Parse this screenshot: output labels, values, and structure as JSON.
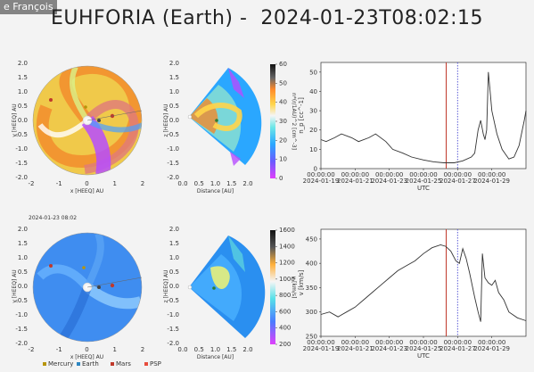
{
  "speaker": "e François",
  "title": "EUHFORIA (Earth) -  2024-01-23T08:02:15",
  "bottom_left_timestamp": "2024-01-23 08:02",
  "colors": {
    "accent_line": "#333333",
    "current_time_marker": "#c0392b",
    "dotted_marker": "#5b5bd6"
  },
  "chart_data": [
    {
      "type": "image",
      "panel": "top-left",
      "xlabel": "x [HEEQ] AU",
      "ylabel": "y [HEEQ] AU",
      "x_ticks": [
        "-2",
        "-1",
        "0",
        "1",
        "2"
      ],
      "y_ticks": [
        "2.0",
        "1.5",
        "1.0",
        "0.5",
        "0.0",
        "-0.5",
        "-1.0",
        "-1.5",
        "-2.0"
      ]
    },
    {
      "type": "image",
      "panel": "top-middle",
      "xlabel": "Distance [AU]",
      "ylabel": "z [HEEQ] AU",
      "x_ticks": [
        "0.0",
        "0.5",
        "1.0",
        "1.5",
        "2.0"
      ],
      "y_ticks": [
        "2.0",
        "1.5",
        "1.0",
        "0.5",
        "0.0",
        "-0.5",
        "-1.0",
        "-1.5",
        "-2.0"
      ]
    },
    {
      "type": "colorbar",
      "panel": "top-colorbar",
      "label": "n*(r/1AU)^2 [cm^-3]",
      "range": [
        0,
        60
      ],
      "ticks": [
        "60",
        "50",
        "40",
        "30",
        "20",
        "10",
        "0"
      ]
    },
    {
      "type": "line",
      "panel": "top-right",
      "ylabel": "n_p [cc^-1]",
      "xlabel": "UTC",
      "ylim": [
        0,
        55
      ],
      "y_ticks": [
        "0",
        "10",
        "20",
        "30",
        "40",
        "50"
      ],
      "x_ticks": [
        "00:00:00\n2024-01-19",
        "00:00:00\n2024-01-21",
        "00:00:00\n2024-01-23",
        "00:00:00\n2024-01-25",
        "00:00:00\n2024-01-27",
        "00:00:00\n2024-01-29"
      ],
      "x_tick_line1": [
        "00:00:00",
        "00:00:00",
        "00:00:00",
        "00:00:00",
        "00:00:00",
        "00:00:00"
      ],
      "x_tick_line2": [
        "2024-01-19",
        "2024-01-21",
        "2024-01-23",
        "2024-01-25",
        "2024-01-27",
        "2024-01-29"
      ],
      "t_range_days": [
        0,
        12
      ],
      "current_time_day": 7.33,
      "dotted_time_day": 8.0,
      "series": [
        {
          "values_t": [
            0,
            0.3,
            0.8,
            1.2,
            1.8,
            2.2,
            2.8,
            3.2,
            3.8,
            4.2,
            4.8,
            5.3,
            6.0,
            6.6,
            7.2,
            7.8,
            8.3,
            8.8,
            9.0,
            9.2,
            9.35,
            9.5,
            9.6,
            9.7,
            9.8,
            9.9,
            10.0,
            10.3,
            10.6,
            11.0,
            11.3,
            11.6,
            11.9,
            12.0
          ],
          "values": [
            15,
            14,
            16,
            18,
            16,
            14,
            16,
            18,
            14,
            10,
            8,
            6,
            4.5,
            3.5,
            3,
            3,
            4,
            6,
            8,
            20,
            25,
            18,
            15,
            20,
            50,
            40,
            30,
            18,
            10,
            5,
            6,
            12,
            25,
            30
          ]
        }
      ]
    },
    {
      "type": "image",
      "panel": "bottom-left",
      "xlabel": "x [HEEQ] AU",
      "ylabel": "y [HEEQ] AU",
      "x_ticks": [
        "-2",
        "-1",
        "0",
        "1",
        "2"
      ],
      "y_ticks": [
        "2.0",
        "1.5",
        "1.0",
        "0.5",
        "0.0",
        "-0.5",
        "-1.0",
        "-1.5",
        "-2.0"
      ]
    },
    {
      "type": "image",
      "panel": "bottom-middle",
      "xlabel": "Distance [AU]",
      "ylabel": "z [HEEQ] AU",
      "x_ticks": [
        "0.0",
        "0.5",
        "1.0",
        "1.5",
        "2.0"
      ],
      "y_ticks": [
        "2.0",
        "1.5",
        "1.0",
        "0.5",
        "0.0",
        "-0.5",
        "-1.0",
        "-1.5",
        "-2.0"
      ]
    },
    {
      "type": "colorbar",
      "panel": "bottom-colorbar",
      "label": "v [km/s]",
      "range": [
        200,
        1600
      ],
      "ticks": [
        "1600",
        "1400",
        "1200",
        "1000",
        "800",
        "600",
        "400",
        "200"
      ]
    },
    {
      "type": "line",
      "panel": "bottom-right",
      "ylabel": "v [km/s]",
      "xlabel": "UTC",
      "ylim": [
        250,
        470
      ],
      "y_ticks": [
        "250",
        "300",
        "350",
        "400",
        "450"
      ],
      "x_ticks": [
        "00:00:00\n2024-01-19",
        "00:00:00\n2024-01-21",
        "00:00:00\n2024-01-23",
        "00:00:00\n2024-01-25",
        "00:00:00\n2024-01-27",
        "00:00:00\n2024-01-29"
      ],
      "x_tick_line1": [
        "00:00:00",
        "00:00:00",
        "00:00:00",
        "00:00:00",
        "00:00:00",
        "00:00:00"
      ],
      "x_tick_line2": [
        "2024-01-19",
        "2024-01-21",
        "2024-01-23",
        "2024-01-25",
        "2024-01-27",
        "2024-01-29"
      ],
      "t_range_days": [
        0,
        12
      ],
      "current_time_day": 7.33,
      "dotted_time_day": 8.0,
      "series": [
        {
          "values_t": [
            0,
            0.5,
            1.0,
            1.5,
            2.0,
            2.5,
            3.0,
            3.5,
            4.0,
            4.5,
            5.0,
            5.5,
            6.0,
            6.5,
            7.0,
            7.3,
            7.6,
            7.9,
            8.1,
            8.3,
            8.5,
            8.7,
            9.0,
            9.2,
            9.35,
            9.45,
            9.6,
            9.8,
            10.0,
            10.2,
            10.4,
            10.7,
            11.0,
            11.5,
            12.0
          ],
          "values": [
            295,
            300,
            290,
            300,
            310,
            325,
            340,
            355,
            370,
            385,
            395,
            405,
            420,
            432,
            438,
            435,
            425,
            405,
            400,
            430,
            410,
            380,
            330,
            300,
            280,
            420,
            370,
            360,
            355,
            365,
            340,
            325,
            300,
            288,
            282
          ]
        }
      ]
    },
    {
      "type": "legend",
      "panel": "bottom-legend",
      "entries": [
        {
          "label": "Mercury",
          "color": "#b7950b"
        },
        {
          "label": "Earth",
          "color": "#2e86c1"
        },
        {
          "label": "Mars",
          "color": "#c0392b"
        },
        {
          "label": "PSP",
          "color": "#e74c3c"
        }
      ]
    }
  ]
}
